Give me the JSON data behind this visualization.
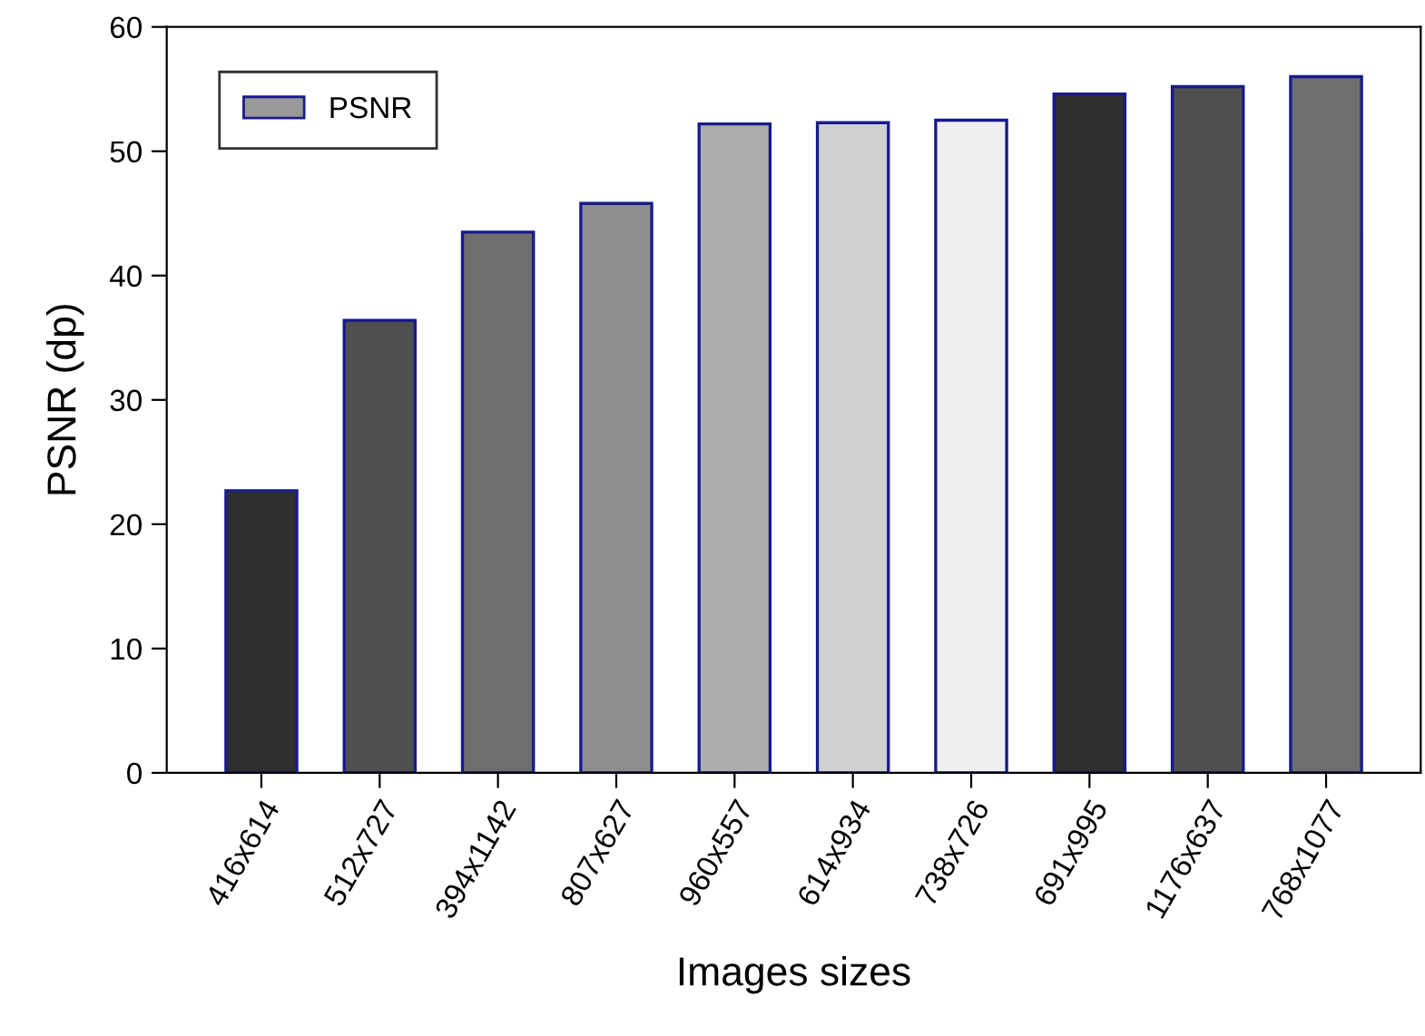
{
  "chart_data": {
    "type": "bar",
    "xlabel": "Images sizes",
    "ylabel": "PSNR (dp)",
    "categories": [
      "416x614",
      "512x727",
      "394x1142",
      "807x627",
      "960x557",
      "614x934",
      "738x726",
      "691x995",
      "1176x637",
      "768x1077"
    ],
    "series": [
      {
        "name": "PSNR",
        "color": "#999999",
        "values": [
          22.7,
          36.4,
          43.5,
          45.8,
          52.2,
          52.3,
          52.5,
          54.6,
          55.2,
          56.0
        ],
        "colors": [
          "#2f2f2f",
          "#4f4f4f",
          "#6e6e6e",
          "#8e8e8e",
          "#adadad",
          "#d0d0d0",
          "#efefef",
          "#2f2f2f",
          "#4f4f4f",
          "#6e6e6e"
        ]
      }
    ],
    "ylim": [
      0,
      60
    ],
    "yticks": [
      0,
      10,
      20,
      30,
      40,
      50,
      60
    ],
    "grid": false,
    "legend": "top left"
  }
}
